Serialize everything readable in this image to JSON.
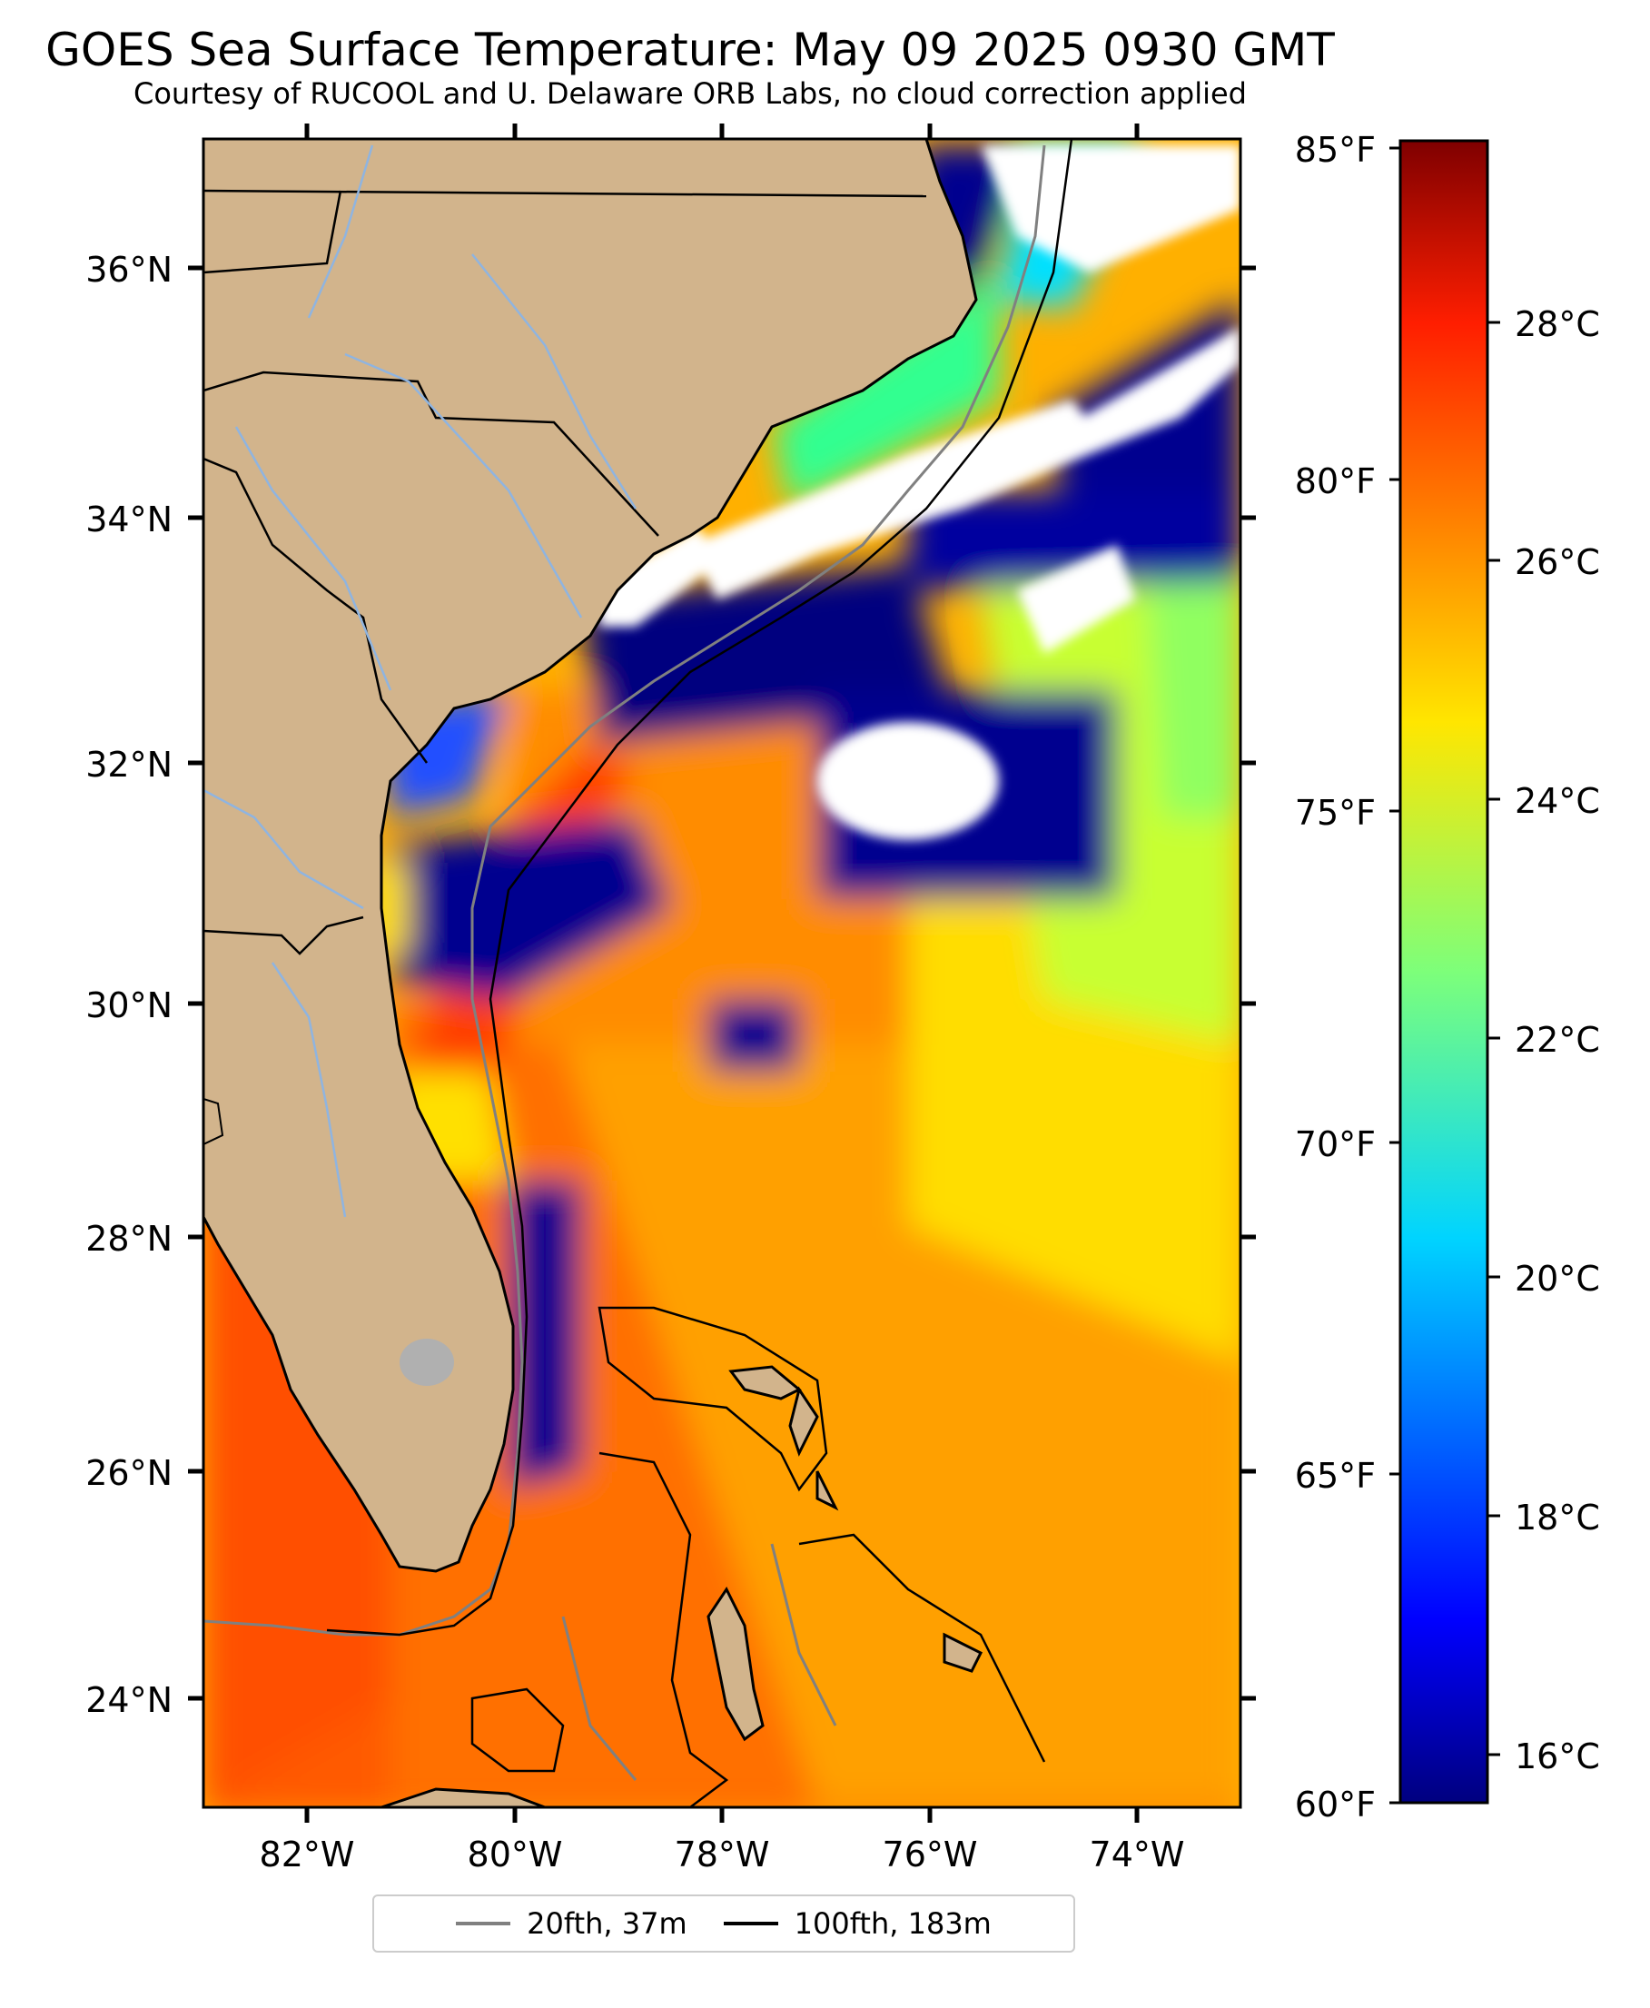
{
  "header": {
    "title": "GOES Sea Surface Temperature: May 09 2025 0930 GMT",
    "subtitle": "Courtesy of RUCOOL and U. Delaware ORB Labs, no cloud correction applied"
  },
  "map": {
    "lat_labels": [
      "36°N",
      "34°N",
      "32°N",
      "30°N",
      "28°N",
      "26°N",
      "24°N"
    ],
    "lon_labels": [
      "82°W",
      "80°W",
      "78°W",
      "76°W",
      "74°W"
    ],
    "colors": {
      "land": "#d2b48c",
      "cloud": "#ffffff",
      "coast": "#000000",
      "rivers": "#8fb4e0",
      "depth_20fth": "#808080",
      "depth_100fth": "#000000"
    }
  },
  "colorbar": {
    "fahrenheit_labels": [
      "85°F",
      "80°F",
      "75°F",
      "70°F",
      "65°F",
      "60°F"
    ],
    "celsius_labels": [
      "28°C",
      "26°C",
      "24°C",
      "22°C",
      "20°C",
      "18°C",
      "16°C"
    ],
    "colormap": "jet"
  },
  "legend": {
    "items": [
      {
        "label": "20fth, 37m",
        "color": "#808080"
      },
      {
        "label": "100fth, 183m",
        "color": "#000000"
      }
    ]
  }
}
